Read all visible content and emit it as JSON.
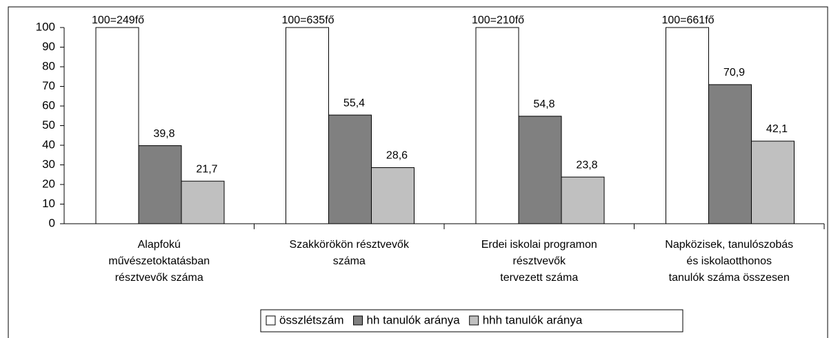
{
  "chart_data": {
    "type": "bar",
    "categories": [
      "Alapfokú\nművészetoktatásban\nrésztvevők száma",
      "Szakkörökön résztvevők\nszáma",
      "Erdei iskolai programon\nrésztvevők\ntervezett száma",
      "Napközisek, tanulószobás\nés iskolaotthonos\ntanulók száma összesen"
    ],
    "series": [
      {
        "name": "összlétszám",
        "color": "#ffffff",
        "values": [
          100,
          100,
          100,
          100
        ],
        "value_labels": [
          "100=249fő",
          "100=635fő",
          "100=210fő",
          "100=661fő"
        ]
      },
      {
        "name": "hh tanulók aránya",
        "color": "#808080",
        "values": [
          39.8,
          55.4,
          54.8,
          70.9
        ],
        "value_labels": [
          "39,8",
          "55,4",
          "54,8",
          "70,9"
        ]
      },
      {
        "name": "hhh tanulók aránya",
        "color": "#c0c0c0",
        "values": [
          21.7,
          28.6,
          23.8,
          42.1
        ],
        "value_labels": [
          "21,7",
          "28,6",
          "23,8",
          "42,1"
        ]
      }
    ],
    "ylim": [
      0,
      100
    ],
    "yticks": [
      0,
      10,
      20,
      30,
      40,
      50,
      60,
      70,
      80,
      90,
      100
    ],
    "grid": false,
    "legend": "bottom"
  }
}
